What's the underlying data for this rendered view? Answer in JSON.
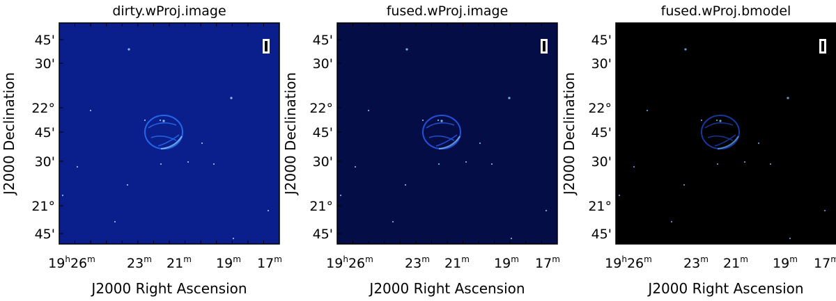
{
  "figure": {
    "panels": [
      {
        "title": "dirty.wProj.image",
        "background": "#0b1f8c",
        "source_color": "#2b7bff",
        "point_color": "#9fdcff"
      },
      {
        "title": "fused.wProj.image",
        "background": "#050d47",
        "source_color": "#2b63ff",
        "point_color": "#8bd1ff"
      },
      {
        "title": "fused.wProj.bmodel",
        "background": "#000000",
        "source_color": "#1c47c9",
        "point_color": "#6fb7ff"
      }
    ],
    "dec_ticks": [
      "45'",
      "30'",
      "22°",
      "45'",
      "30'",
      "21°",
      "45'"
    ],
    "ra_ticks": [
      {
        "main": "19",
        "sup1": "h",
        "main2": "26",
        "sup2": "m"
      },
      {
        "main": "23",
        "sup1": "m"
      },
      {
        "main": "21",
        "sup1": "m"
      },
      {
        "main": "19",
        "sup1": "m"
      },
      {
        "main": "17",
        "sup1": "m"
      }
    ],
    "xlabel": "J2000 Right Ascension",
    "ylabel": "J2000 Declination",
    "frame_color": "#000000",
    "beam_marker_color": "#ffffff"
  }
}
